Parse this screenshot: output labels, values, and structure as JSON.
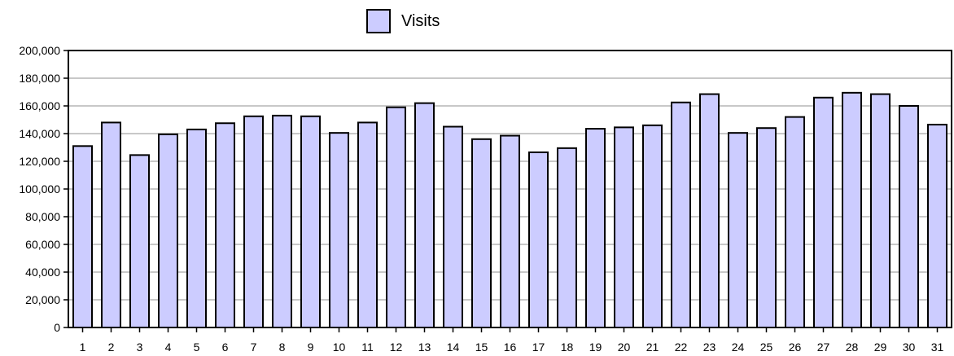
{
  "chart_data": {
    "type": "bar",
    "categories": [
      "1",
      "2",
      "3",
      "4",
      "5",
      "6",
      "7",
      "8",
      "9",
      "10",
      "11",
      "12",
      "13",
      "14",
      "15",
      "16",
      "17",
      "18",
      "19",
      "20",
      "21",
      "22",
      "23",
      "24",
      "25",
      "26",
      "27",
      "28",
      "29",
      "30",
      "31"
    ],
    "series": [
      {
        "name": "Visits",
        "values": [
          131000,
          148000,
          124500,
          139500,
          143000,
          147500,
          152500,
          153000,
          152500,
          140500,
          148000,
          159000,
          162000,
          145000,
          136000,
          138500,
          126500,
          129500,
          143500,
          144500,
          146000,
          162500,
          168500,
          140500,
          144000,
          152000,
          166000,
          169500,
          168500,
          160000,
          146500
        ]
      }
    ],
    "ylim": [
      0,
      200000
    ],
    "yticks": [
      "0",
      "20,000",
      "40,000",
      "60,000",
      "80,000",
      "100,000",
      "120,000",
      "140,000",
      "160,000",
      "180,000",
      "200,000"
    ],
    "ytick_values": [
      0,
      20000,
      40000,
      60000,
      80000,
      100000,
      120000,
      140000,
      160000,
      180000,
      200000
    ],
    "grid": true,
    "legend_position": "top-center",
    "colors": {
      "bar_fill": "#ccccff",
      "bar_stroke": "#000000",
      "grid": "#c8c8c8",
      "axis": "#000000"
    }
  }
}
